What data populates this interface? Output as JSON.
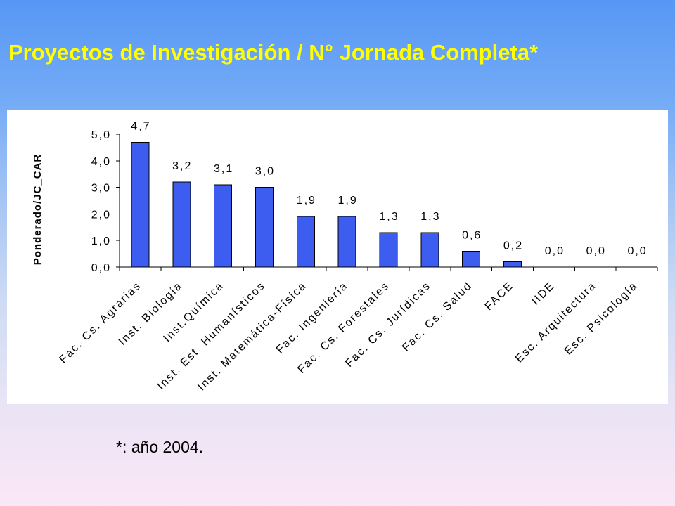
{
  "slide": {
    "title": "Proyectos de Investigación / N° Jornada Completa*",
    "footnote": "*: año 2004."
  },
  "colors": {
    "title": "#ffff00",
    "bar_fill": "#3d5cf0",
    "bar_stroke": "#000000",
    "panel_background": "#ffffff"
  },
  "chart_data": {
    "type": "bar",
    "categories": [
      "Fac. Cs. Agrarias",
      "Inst. Biología",
      "Inst.Química",
      "Inst. Est. Humanísticos",
      "Inst. Matemática-Física",
      "Fac. Ingeniería",
      "Fac. Cs. Forestales",
      "Fac. Cs. Jurídicas",
      "Fac. Cs. Salud",
      "FACE",
      "IIDE",
      "Esc. Arquitectura",
      "Esc. Psicología"
    ],
    "values": [
      4.7,
      3.2,
      3.1,
      3.0,
      1.9,
      1.9,
      1.3,
      1.3,
      0.6,
      0.2,
      0.0,
      0.0,
      0.0
    ],
    "data_labels": [
      "4,7",
      "3,2",
      "3,1",
      "3,0",
      "1,9",
      "1,9",
      "1,3",
      "1,3",
      "0,6",
      "0,2",
      "0,0",
      "0,0",
      "0,0"
    ],
    "ylabel": "Ponderado/JC_CAR",
    "ylim": [
      0,
      5
    ],
    "yticks": [
      0,
      1,
      2,
      3,
      4,
      5
    ],
    "ytick_labels": [
      "0,0",
      "1,0",
      "2,0",
      "3,0",
      "4,0",
      "5,0"
    ],
    "grid": false
  }
}
